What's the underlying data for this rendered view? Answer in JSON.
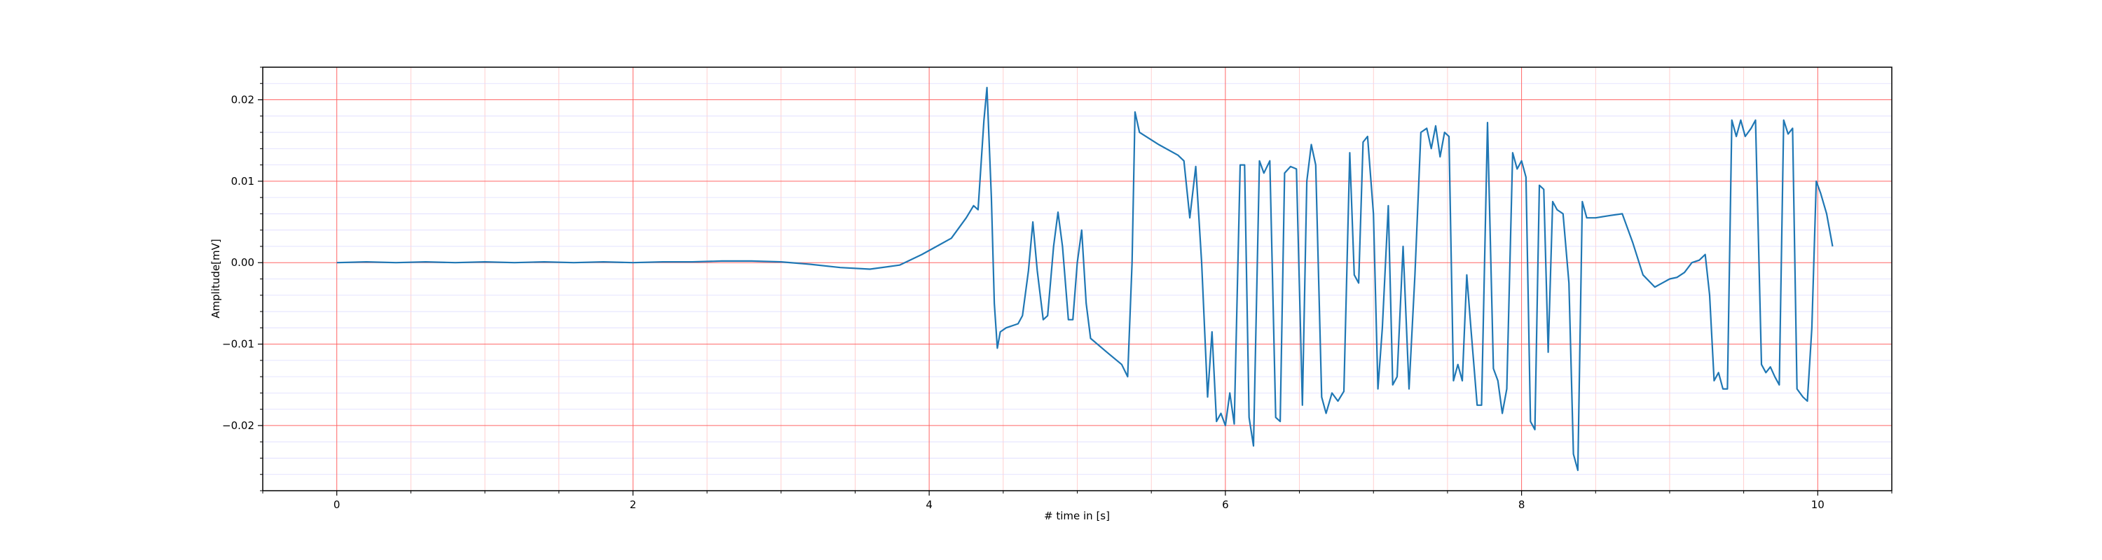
{
  "chart_data": {
    "type": "line",
    "xlabel": "# time in [s]",
    "ylabel": "Amplitude[mV]",
    "xlim": [
      -0.5,
      10.5
    ],
    "ylim": [
      -0.028,
      0.024
    ],
    "xticks": [
      0,
      2,
      4,
      6,
      8,
      10
    ],
    "xtick_labels": [
      "0",
      "2",
      "4",
      "6",
      "8",
      "10"
    ],
    "yticks": [
      -0.02,
      -0.01,
      0.0,
      0.01,
      0.02
    ],
    "ytick_labels": [
      "−0.02",
      "−0.01",
      "0.00",
      "0.01",
      "0.02"
    ],
    "grid": true,
    "colors": {
      "line": "#1f77b4",
      "major_grid": "#ff6666",
      "minor_grid": "#ffc4c4",
      "minor_grid_horizontal": "#dddcff"
    },
    "series": [
      {
        "values": [
          [
            0.0,
            0.0
          ],
          [
            0.2,
            0.0001
          ],
          [
            0.4,
            0.0
          ],
          [
            0.6,
            0.0001
          ],
          [
            0.8,
            0.0
          ],
          [
            1.0,
            0.0001
          ],
          [
            1.2,
            0.0
          ],
          [
            1.4,
            0.0001
          ],
          [
            1.6,
            0.0
          ],
          [
            1.8,
            0.0001
          ],
          [
            2.0,
            0.0
          ],
          [
            2.2,
            0.0001
          ],
          [
            2.4,
            0.0001
          ],
          [
            2.6,
            0.0002
          ],
          [
            2.8,
            0.0002
          ],
          [
            3.0,
            0.0001
          ],
          [
            3.2,
            -0.0002
          ],
          [
            3.4,
            -0.0006
          ],
          [
            3.6,
            -0.0008
          ],
          [
            3.8,
            -0.0003
          ],
          [
            3.95,
            0.001
          ],
          [
            4.05,
            0.002
          ],
          [
            4.15,
            0.003
          ],
          [
            4.25,
            0.0055
          ],
          [
            4.3,
            0.007
          ],
          [
            4.33,
            0.0065
          ],
          [
            4.37,
            0.0175
          ],
          [
            4.39,
            0.0215
          ],
          [
            4.42,
            0.008
          ],
          [
            4.44,
            -0.005
          ],
          [
            4.46,
            -0.0105
          ],
          [
            4.48,
            -0.0085
          ],
          [
            4.52,
            -0.008
          ],
          [
            4.6,
            -0.0075
          ],
          [
            4.63,
            -0.0065
          ],
          [
            4.67,
            -0.001
          ],
          [
            4.7,
            0.005
          ],
          [
            4.73,
            -0.001
          ],
          [
            4.77,
            -0.007
          ],
          [
            4.8,
            -0.0065
          ],
          [
            4.84,
            0.002
          ],
          [
            4.87,
            0.0062
          ],
          [
            4.9,
            0.002
          ],
          [
            4.94,
            -0.007
          ],
          [
            4.97,
            -0.007
          ],
          [
            5.0,
            0.0
          ],
          [
            5.03,
            0.004
          ],
          [
            5.06,
            -0.005
          ],
          [
            5.09,
            -0.0093
          ],
          [
            5.2,
            -0.011
          ],
          [
            5.3,
            -0.0125
          ],
          [
            5.34,
            -0.014
          ],
          [
            5.37,
            0.0
          ],
          [
            5.39,
            0.0185
          ],
          [
            5.42,
            0.016
          ],
          [
            5.55,
            0.0145
          ],
          [
            5.68,
            0.0132
          ],
          [
            5.72,
            0.0125
          ],
          [
            5.76,
            0.0055
          ],
          [
            5.8,
            0.0118
          ],
          [
            5.84,
            0.0
          ],
          [
            5.88,
            -0.0165
          ],
          [
            5.91,
            -0.0085
          ],
          [
            5.94,
            -0.0195
          ],
          [
            5.97,
            -0.0185
          ],
          [
            6.0,
            -0.02
          ],
          [
            6.03,
            -0.016
          ],
          [
            6.06,
            -0.0198
          ],
          [
            6.1,
            0.012
          ],
          [
            6.13,
            0.012
          ],
          [
            6.16,
            -0.019
          ],
          [
            6.19,
            -0.0225
          ],
          [
            6.23,
            0.0125
          ],
          [
            6.26,
            0.011
          ],
          [
            6.3,
            0.0125
          ],
          [
            6.34,
            -0.019
          ],
          [
            6.37,
            -0.0195
          ],
          [
            6.4,
            0.011
          ],
          [
            6.44,
            0.0118
          ],
          [
            6.48,
            0.0115
          ],
          [
            6.52,
            -0.0175
          ],
          [
            6.55,
            0.01
          ],
          [
            6.58,
            0.0145
          ],
          [
            6.61,
            0.012
          ],
          [
            6.65,
            -0.0165
          ],
          [
            6.68,
            -0.0185
          ],
          [
            6.72,
            -0.016
          ],
          [
            6.76,
            -0.017
          ],
          [
            6.8,
            -0.0158
          ],
          [
            6.84,
            0.0135
          ],
          [
            6.87,
            -0.0015
          ],
          [
            6.9,
            -0.0025
          ],
          [
            6.93,
            0.0148
          ],
          [
            6.96,
            0.0155
          ],
          [
            7.0,
            0.006
          ],
          [
            7.03,
            -0.0155
          ],
          [
            7.06,
            -0.008
          ],
          [
            7.1,
            0.007
          ],
          [
            7.13,
            -0.015
          ],
          [
            7.16,
            -0.014
          ],
          [
            7.2,
            0.002
          ],
          [
            7.24,
            -0.0155
          ],
          [
            7.28,
            -0.0015
          ],
          [
            7.32,
            0.016
          ],
          [
            7.36,
            0.0165
          ],
          [
            7.39,
            0.014
          ],
          [
            7.42,
            0.0168
          ],
          [
            7.45,
            0.013
          ],
          [
            7.48,
            0.016
          ],
          [
            7.51,
            0.0155
          ],
          [
            7.54,
            -0.0145
          ],
          [
            7.57,
            -0.0125
          ],
          [
            7.6,
            -0.0145
          ],
          [
            7.63,
            -0.0015
          ],
          [
            7.66,
            -0.0085
          ],
          [
            7.7,
            -0.0175
          ],
          [
            7.73,
            -0.0175
          ],
          [
            7.77,
            0.0172
          ],
          [
            7.81,
            -0.013
          ],
          [
            7.84,
            -0.0145
          ],
          [
            7.87,
            -0.0185
          ],
          [
            7.9,
            -0.0155
          ],
          [
            7.94,
            0.0135
          ],
          [
            7.97,
            0.0115
          ],
          [
            8.0,
            0.0125
          ],
          [
            8.03,
            0.0105
          ],
          [
            8.06,
            -0.0195
          ],
          [
            8.09,
            -0.0205
          ],
          [
            8.12,
            0.0095
          ],
          [
            8.15,
            0.009
          ],
          [
            8.18,
            -0.011
          ],
          [
            8.21,
            0.0075
          ],
          [
            8.24,
            0.0065
          ],
          [
            8.28,
            0.006
          ],
          [
            8.32,
            -0.0025
          ],
          [
            8.35,
            -0.0235
          ],
          [
            8.38,
            -0.0255
          ],
          [
            8.41,
            0.0075
          ],
          [
            8.44,
            0.0055
          ],
          [
            8.5,
            0.0055
          ],
          [
            8.6,
            0.0058
          ],
          [
            8.68,
            0.006
          ],
          [
            8.75,
            0.0025
          ],
          [
            8.82,
            -0.0015
          ],
          [
            8.9,
            -0.003
          ],
          [
            8.95,
            -0.0025
          ],
          [
            9.0,
            -0.002
          ],
          [
            9.05,
            -0.0018
          ],
          [
            9.1,
            -0.0012
          ],
          [
            9.15,
            0.0
          ],
          [
            9.2,
            0.0003
          ],
          [
            9.24,
            0.001
          ],
          [
            9.27,
            -0.004
          ],
          [
            9.3,
            -0.0145
          ],
          [
            9.33,
            -0.0135
          ],
          [
            9.36,
            -0.0155
          ],
          [
            9.39,
            -0.0155
          ],
          [
            9.42,
            0.0175
          ],
          [
            9.45,
            0.0155
          ],
          [
            9.48,
            0.0175
          ],
          [
            9.51,
            0.0155
          ],
          [
            9.55,
            0.0165
          ],
          [
            9.58,
            0.0175
          ],
          [
            9.62,
            -0.0125
          ],
          [
            9.65,
            -0.0135
          ],
          [
            9.68,
            -0.0128
          ],
          [
            9.71,
            -0.014
          ],
          [
            9.74,
            -0.015
          ],
          [
            9.77,
            0.0175
          ],
          [
            9.8,
            0.0158
          ],
          [
            9.83,
            0.0165
          ],
          [
            9.86,
            -0.0155
          ],
          [
            9.9,
            -0.0165
          ],
          [
            9.93,
            -0.017
          ],
          [
            9.96,
            -0.008
          ],
          [
            9.99,
            0.01
          ],
          [
            10.02,
            0.0085
          ],
          [
            10.06,
            0.006
          ],
          [
            10.1,
            0.002
          ]
        ]
      }
    ]
  }
}
